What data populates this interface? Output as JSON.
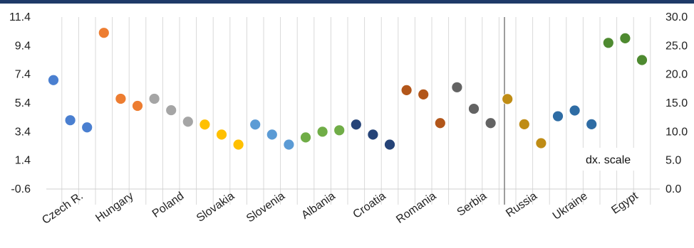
{
  "chart_data": {
    "type": "scatter",
    "left_axis": {
      "ylim": [
        -0.6,
        11.4
      ],
      "ticks": [
        11.4,
        9.4,
        7.4,
        5.4,
        3.4,
        1.4,
        -0.6
      ],
      "tick_labels": [
        "11.4",
        "9.4",
        "7.4",
        "5.4",
        "3.4",
        "1.4",
        "-0.6"
      ]
    },
    "right_axis": {
      "ylim": [
        0,
        30
      ],
      "ticks": [
        30,
        25,
        20,
        15,
        10,
        5,
        0
      ],
      "tick_labels": [
        "30.0",
        "25.0",
        "20.0",
        "15.0",
        "10.0",
        "5.0",
        "0.0"
      ]
    },
    "grid": "vertical",
    "categories": [
      "Czech R.",
      "Hungary",
      "Poland",
      "Slovakia",
      "Slovenia",
      "Albania",
      "Croatia",
      "Romania",
      "Serbia",
      "Russia",
      "Ukraine",
      "Egypt"
    ],
    "groups": [
      {
        "name": "Czech R.",
        "axis": "left",
        "color": "#4a7fd0",
        "values": [
          7.0,
          4.2,
          3.7
        ]
      },
      {
        "name": "Hungary",
        "axis": "left",
        "color": "#ed7d31",
        "values": [
          10.3,
          5.7,
          5.2
        ]
      },
      {
        "name": "Poland",
        "axis": "left",
        "color": "#a5a5a5",
        "values": [
          5.7,
          4.9,
          4.1
        ]
      },
      {
        "name": "Slovakia",
        "axis": "left",
        "color": "#ffc000",
        "values": [
          3.9,
          3.2,
          2.5
        ]
      },
      {
        "name": "Slovenia",
        "axis": "left",
        "color": "#5b9bd5",
        "values": [
          3.9,
          3.2,
          2.5
        ]
      },
      {
        "name": "Albania",
        "axis": "left",
        "color": "#70ad47",
        "values": [
          3.0,
          3.4,
          3.5
        ]
      },
      {
        "name": "Croatia",
        "axis": "left",
        "color": "#264478",
        "values": [
          3.9,
          3.2,
          2.5
        ]
      },
      {
        "name": "Romania",
        "axis": "left",
        "color": "#b2561a",
        "values": [
          6.3,
          6.0,
          4.0
        ]
      },
      {
        "name": "Serbia",
        "axis": "left",
        "color": "#636363",
        "values": [
          6.5,
          5.0,
          4.0
        ]
      },
      {
        "name": "Russia",
        "axis": "right",
        "color": "#bf8c15",
        "values": [
          15.7,
          11.3,
          8.0
        ]
      },
      {
        "name": "Ukraine",
        "axis": "right",
        "color": "#2e6ca4",
        "values": [
          12.7,
          13.7,
          11.3
        ]
      },
      {
        "name": "Egypt",
        "axis": "right",
        "color": "#4e8a30",
        "values": [
          25.5,
          26.3,
          22.5
        ]
      }
    ],
    "annotation": "dx. scale"
  }
}
